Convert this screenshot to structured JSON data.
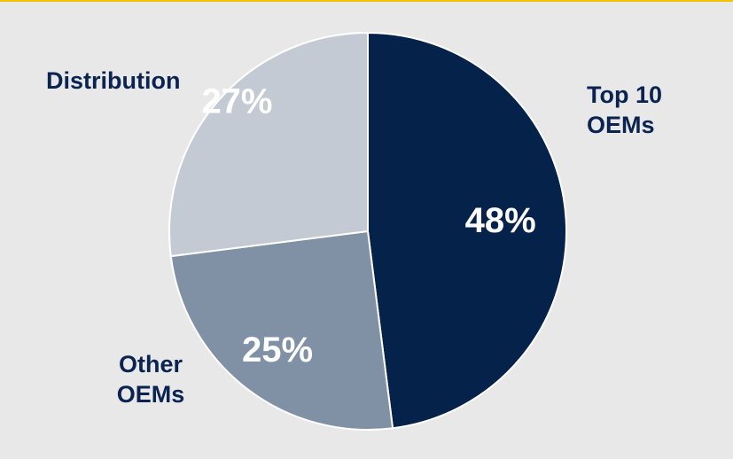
{
  "colors": {
    "background": "#e8e8e8",
    "top_border": "#f2c200",
    "label_text": "#0b2350",
    "slice_label_text": "#ffffff"
  },
  "chart_data": {
    "type": "pie",
    "title": "",
    "slices": [
      {
        "label_lines": [
          "Top 10",
          "OEMs"
        ],
        "value": 48,
        "value_label": "48%",
        "color": "#05224a"
      },
      {
        "label_lines": [
          "Other",
          "OEMs"
        ],
        "value": 25,
        "value_label": "25%",
        "color": "#8091a6"
      },
      {
        "label_lines": [
          "Distribution"
        ],
        "value": 27,
        "value_label": "27%",
        "color": "#c4cad3"
      }
    ],
    "start_angle": "12 o'clock",
    "direction": "clockwise",
    "legend": "none (labels outside slices)"
  }
}
